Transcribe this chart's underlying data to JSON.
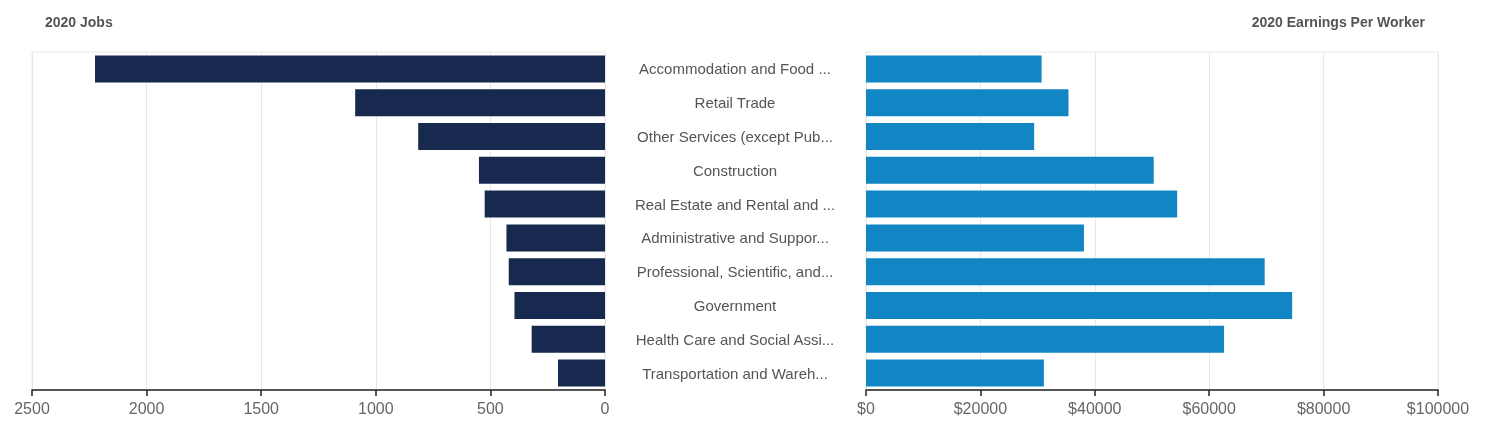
{
  "chart_data": [
    {
      "type": "bar",
      "orientation": "horizontal",
      "title": "2020 Jobs",
      "categories": [
        null,
        null,
        null,
        null,
        null,
        null,
        null,
        null,
        null,
        null
      ],
      "values": [
        2225,
        1090,
        815,
        550,
        525,
        430,
        420,
        395,
        320,
        205
      ],
      "color": "#17294f",
      "xlim": [
        2500,
        0
      ],
      "xticks": [
        2500,
        2000,
        1500,
        1000,
        500,
        0
      ],
      "grid": "x"
    },
    {
      "type": "bar",
      "orientation": "horizontal",
      "title": "2020 Earnings Per Worker",
      "categories": [
        "Accommodation and Food ...",
        "Retail Trade",
        "Other Services (except Pub...",
        "Construction",
        "Real Estate and Rental and ...",
        "Administrative and Suppor...",
        "Professional, Scientific, and...",
        "Government",
        "Health Care and Social Assi...",
        "Transportation and Wareh..."
      ],
      "values": [
        30700,
        35400,
        29400,
        50300,
        54400,
        38100,
        69700,
        74500,
        62600,
        31100
      ],
      "color": "#1285c4",
      "xlim": [
        0,
        100000
      ],
      "xticks": [
        {
          "value": 0,
          "label": "$0"
        },
        {
          "value": 20000,
          "label": "$20000"
        },
        {
          "value": 40000,
          "label": "$40000"
        },
        {
          "value": 60000,
          "label": "$60000"
        },
        {
          "value": 80000,
          "label": "$80000"
        },
        {
          "value": 100000,
          "label": "$100000"
        }
      ],
      "grid": "x"
    }
  ]
}
